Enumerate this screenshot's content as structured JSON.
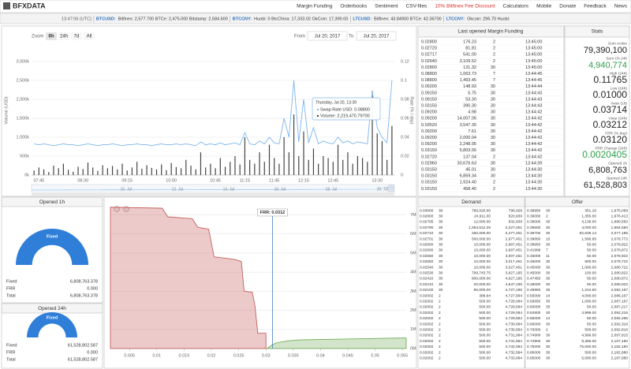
{
  "header": {
    "logo": "BFXDATA",
    "menu": [
      "Margin Funding",
      "Orderbooks",
      "Sentiment",
      "CSV-files",
      "10% Bitfinex Fee Discount",
      "Calculators",
      "Mobile",
      "Donate",
      "Feedback",
      "News"
    ]
  },
  "ticker": {
    "time": "13:47:06 (UTC)",
    "pairs": [
      {
        "pair": "BTCUSD:",
        "quotes": "Bitfinex: 2,577.700 BTCe: 2,475.000 Bitstamp: 2,584.600"
      },
      {
        "pair": "BTCCNY:",
        "quotes": "Huobi: 0 BtcChina: 17,333.02 OkCoin: 17,390.00"
      },
      {
        "pair": "LTCUSD:",
        "quotes": "Bitfinex: 43.84900 BTCe: 42.36700"
      },
      {
        "pair": "LTCCNY:",
        "quotes": "Okcoin: 296.70 Huobi:"
      }
    ]
  },
  "controls": {
    "zoom": "Zoom",
    "buttons": [
      "6h",
      "24h",
      "7d",
      "All"
    ],
    "from": "From",
    "from_date": "Jul 20, 2017",
    "to": "To",
    "to_date": "Jul 20, 2017"
  },
  "chart_data": [
    {
      "type": "bar",
      "ylabel": "Volume (USD)",
      "y2label": "Rate (% / day)",
      "categories": [
        null,
        "07:45",
        null,
        null,
        null,
        null,
        null,
        null,
        null,
        null,
        "08:30",
        null,
        null,
        null,
        null,
        null,
        null,
        null,
        null,
        "09:15",
        null,
        null,
        null,
        null,
        null,
        null,
        null,
        null,
        "10:00",
        null,
        null,
        null,
        null,
        null,
        null,
        null,
        null,
        "10:45",
        null,
        null,
        null,
        null,
        null,
        "11:15",
        null,
        null,
        null,
        null,
        null,
        "11:45",
        null,
        null,
        null,
        null,
        null,
        "12:15",
        null,
        null,
        null,
        null,
        null,
        "12:45",
        null,
        null,
        null,
        null,
        null,
        null,
        null,
        null,
        "13:30",
        null,
        null,
        null
      ],
      "series": [
        {
          "name": "Volume",
          "color": "#444444",
          "values": [
            120,
            200,
            150,
            80,
            250,
            180,
            300,
            140,
            90,
            220,
            160,
            330,
            200,
            110,
            260,
            180,
            240,
            150,
            300,
            120,
            200,
            350,
            170,
            260,
            190,
            150,
            280,
            130,
            320,
            210,
            180,
            400,
            250,
            150,
            600,
            200,
            300,
            180,
            450,
            220,
            350,
            500,
            280,
            1000,
            400,
            300,
            600,
            350,
            800,
            450,
            300,
            1000,
            600,
            1600,
            500,
            1150,
            400,
            700,
            300,
            500,
            450,
            350,
            800,
            400,
            600,
            300,
            500,
            450,
            350,
            2219,
            1100,
            900,
            400,
            1300
          ]
        },
        {
          "name": "Swap Rate USD",
          "color": "#7cb5ec",
          "axis": "y2",
          "values": [
            0.033,
            0.032,
            0.033,
            0.032,
            0.031,
            0.032,
            0.033,
            0.032,
            0.032,
            0.031,
            0.032,
            0.033,
            0.032,
            0.031,
            0.032,
            0.032,
            0.033,
            0.032,
            0.031,
            0.032,
            0.032,
            0.033,
            0.032,
            0.032,
            0.031,
            0.032,
            0.033,
            0.032,
            0.032,
            0.033,
            0.032,
            0.033,
            0.032,
            0.031,
            0.035,
            0.032,
            0.033,
            0.032,
            0.034,
            0.032,
            0.033,
            0.034,
            0.032,
            0.045,
            0.033,
            0.032,
            0.036,
            0.033,
            0.04,
            0.034,
            0.033,
            0.06,
            0.04,
            0.1,
            0.035,
            0.08,
            0.034,
            0.05,
            0.033,
            0.036,
            0.034,
            0.033,
            0.04,
            0.034,
            0.036,
            0.033,
            0.035,
            0.034,
            0.033,
            0.088,
            0.05,
            0.04,
            0.034,
            0.1
          ]
        }
      ],
      "ylim": [
        0,
        3375
      ],
      "yticks": [
        {
          "value": 0,
          "label": "0k"
        },
        {
          "value": 500,
          "label": "500k"
        },
        {
          "value": 1000,
          "label": "1,000k"
        },
        {
          "value": 1500,
          "label": "1,500k"
        },
        {
          "value": 2000,
          "label": "2,000k"
        },
        {
          "value": 2500,
          "label": "2,500k"
        },
        {
          "value": 3000,
          "label": "3,000k"
        }
      ],
      "y2lim": [
        0,
        0.135
      ],
      "y2ticks": [
        0,
        0.02,
        0.04,
        0.06,
        0.08,
        0.1,
        0.12
      ],
      "grid": true,
      "tooltip": {
        "date": "Thursday, Jul 20, 13:39",
        "rate": "Swap Rate USD: 0.08800",
        "volume": "Volume: 2,219,470.79700"
      },
      "navigator_labels": [
        "10. Jul",
        "12. Jul",
        "14. Jul",
        "16. Jul",
        "18. Jul",
        "20. Jul"
      ]
    },
    {
      "type": "area",
      "frr": {
        "value": 0.0312,
        "label": "FRR: 0.0312"
      },
      "series": [
        {
          "name": "Demand",
          "color": "#c0504d",
          "x": [
            0.0015,
            0.011,
            0.012,
            0.0165,
            0.0175,
            0.0195,
            0.0205,
            0.0235,
            0.0245,
            0.0255,
            0.026,
            0.0275,
            0.028,
            0.0285,
            0.0295,
            0.03,
            0.03
          ],
          "values": [
            7.4,
            7.35,
            6.9,
            6.8,
            6.35,
            6.25,
            4.8,
            4.7,
            4.65,
            4.55,
            3.0,
            2.95,
            2.2,
            0.8,
            0.8,
            0.8,
            0
          ]
        },
        {
          "name": "Offer",
          "color": "#6aa84f",
          "x": [
            0.0302,
            0.0312,
            0.032,
            0.034,
            0.036,
            0.045,
            0.055,
            0.0557
          ],
          "values": [
            0,
            0.2,
            0.3,
            0.4,
            0.45,
            0.5,
            0.55,
            0.55
          ]
        }
      ],
      "xlim": [
        0.0015,
        0.0557
      ],
      "xticks": [
        0.005,
        0.01,
        0.015,
        0.02,
        0.025,
        0.03,
        0.035,
        0.04,
        0.045,
        0.05,
        0.055
      ],
      "ylim": [
        0,
        7.6
      ],
      "yticks": [
        {
          "value": 0,
          "label": "0M"
        },
        {
          "value": 1,
          "label": "1M"
        },
        {
          "value": 2,
          "label": "2M"
        },
        {
          "value": 3,
          "label": "3M"
        },
        {
          "value": 4,
          "label": "4M"
        },
        {
          "value": 5,
          "label": "5M"
        },
        {
          "value": 6,
          "label": "6M"
        },
        {
          "value": 7,
          "label": "7M"
        }
      ],
      "grid": true
    }
  ],
  "funding": {
    "title": "Last opened Margin Funding",
    "rows": [
      [
        "0.02800",
        "176.23",
        "2",
        "13:45:00"
      ],
      [
        "0.02720",
        "81.81",
        "2",
        "13:45:00"
      ],
      [
        "0.02717",
        "541.00",
        "2",
        "13:45:00"
      ],
      [
        "0.02640",
        "3,109.52",
        "2",
        "13:45:00"
      ],
      [
        "0.02800",
        "131.32",
        "30",
        "13:45:00"
      ],
      [
        "0.08800",
        "1,063.73",
        "7",
        "13:44:45"
      ],
      [
        "0.08800",
        "1,493.45",
        "7",
        "13:44:45"
      ],
      [
        "0.09200",
        "148.93",
        "30",
        "13:44:44"
      ],
      [
        "0.09150",
        "5.75",
        "30",
        "13:44:43"
      ],
      [
        "0.09150",
        "53.30",
        "30",
        "13:44:43"
      ],
      [
        "0.03150",
        "390.30",
        "30",
        "13:44:43"
      ],
      [
        "0.09200",
        "4.98",
        "30",
        "13:44:42"
      ],
      [
        "0.09200",
        "14,007.06",
        "30",
        "13:44:42"
      ],
      [
        "0.03520",
        "3,547.30",
        "30",
        "13:44:42"
      ],
      [
        "0.09200",
        "7.61",
        "30",
        "13:44:42"
      ],
      [
        "0.09200",
        "2,000.04",
        "30",
        "13:44:42"
      ],
      [
        "0.09200",
        "2,248.95",
        "30",
        "13:44:42"
      ],
      [
        "0.03150",
        "5,803.56",
        "30",
        "13:44:42"
      ],
      [
        "0.02720",
        "137.04",
        "2",
        "13:44:42"
      ],
      [
        "0.02960",
        "30,676.63",
        "30",
        "13:44:39"
      ],
      [
        "0.03150",
        "45.01",
        "30",
        "13:44:30"
      ],
      [
        "0.03150",
        "6,859.34",
        "30",
        "13:44:30"
      ],
      [
        "0.03150",
        "1,924.40",
        "2",
        "13:44:30"
      ],
      [
        "0.03150",
        "458.40",
        "2",
        "13:44:30"
      ]
    ]
  },
  "stats": {
    "title": "Stats",
    "items": [
      {
        "label": "Sum Active",
        "value": "79,390,100"
      },
      {
        "label": "Sum Ch 24h",
        "value": "4,940,774",
        "color": "#2e9e4a"
      },
      {
        "label": "High (24h)",
        "value": "0.11765"
      },
      {
        "label": "Low (24h)",
        "value": "0.01000"
      },
      {
        "label": "Vwar (1h)",
        "value": "0.03714"
      },
      {
        "label": "Vwar (24h)",
        "value": "0.03212"
      },
      {
        "label": "FRR (% day)",
        "value": "0.03120"
      },
      {
        "label": "FRR Change (24h)",
        "value": "0.0020405",
        "color": "#2e9e4a"
      },
      {
        "label": "Opened 1h",
        "value": "6,808,763"
      },
      {
        "label": "Opened 24h",
        "value": "61,528,803"
      }
    ]
  },
  "opened": [
    {
      "title": "Opened 1h",
      "gauge_label": "Fixed",
      "rows": [
        [
          "Fixed",
          "6,808,763.378"
        ],
        [
          "FRR",
          "0.000"
        ],
        [
          "Total",
          "6,808,763.378"
        ]
      ]
    },
    {
      "title": "Opened 24h",
      "gauge_label": "Fixed",
      "rows": [
        [
          "Fixed",
          "61,528,802.587"
        ],
        [
          "FRR",
          "0.000"
        ],
        [
          "Total",
          "61,528,802.587"
        ]
      ]
    }
  ],
  "demand": {
    "title": "Demand",
    "rows": [
      [
        "0.03000",
        "30",
        "796,020.00",
        "796,028"
      ],
      [
        "0.02800",
        "30",
        "24,911.00",
        "820,939"
      ],
      [
        "0.02795",
        "30",
        "12,000.00",
        "832,939"
      ],
      [
        "0.02790",
        "30",
        "1,394,512.25",
        "2,227,451"
      ],
      [
        "0.02710",
        "30",
        "250,000.00",
        "2,477,451"
      ],
      [
        "0.02701",
        "30",
        "500,000.00",
        "2,977,451"
      ],
      [
        "0.02600",
        "30",
        "10,000.00",
        "2,987,451"
      ],
      [
        "0.02600",
        "30",
        "10,000.00",
        "2,997,451"
      ],
      [
        "0.02550",
        "30",
        "10,000.00",
        "3,007,451"
      ],
      [
        "0.02550",
        "30",
        "10,000.00",
        "3,017,451"
      ],
      [
        "0.02540",
        "30",
        "10,000.00",
        "3,027,451"
      ],
      [
        "0.02530",
        "30",
        "799,743.75",
        "3,827,195"
      ],
      [
        "0.02410",
        "30",
        "800,000.00",
        "4,627,195"
      ],
      [
        "0.02210",
        "30",
        "20,000.00",
        "4,647,195"
      ],
      [
        "0.02100",
        "30",
        "80,000.00",
        "4,727,195"
      ],
      [
        "0.02002",
        "2",
        "388.94",
        "4,727,584"
      ],
      [
        "0.02002",
        "2",
        "500.00",
        "4,728,084"
      ],
      [
        "0.02002",
        "2",
        "500.00",
        "4,728,584"
      ],
      [
        "0.02002",
        "2",
        "500.00",
        "4,729,084"
      ],
      [
        "0.02002",
        "2",
        "500.00",
        "4,729,584"
      ],
      [
        "0.02002",
        "2",
        "500.00",
        "4,730,084"
      ],
      [
        "0.02002",
        "2",
        "500.00",
        "4,730,584"
      ],
      [
        "0.02002",
        "2",
        "500.00",
        "4,731,084"
      ],
      [
        "0.02002",
        "2",
        "500.00",
        "4,731,584"
      ],
      [
        "0.02002",
        "2",
        "500.00",
        "4,732,084"
      ],
      [
        "0.02002",
        "2",
        "500.00",
        "4,732,584"
      ],
      [
        "0.02002",
        "2",
        "500.00",
        "4,733,084"
      ]
    ]
  },
  "offer": {
    "title": "Offer",
    "rows": [
      [
        "0.38950",
        "30",
        "351.16",
        "1,975,058"
      ],
      [
        "0.39000",
        "2",
        "1,355.00",
        "1,976,413"
      ],
      [
        "0.39000",
        "30",
        "4,136.00",
        "1,980,550"
      ],
      [
        "0.39600",
        "30",
        "4,000.00",
        "1,984,550"
      ],
      [
        "0.39700",
        "30",
        "92,635.14",
        "2,077,185"
      ],
      [
        "0.39850",
        "15",
        "1,586.95",
        "2,078,772"
      ],
      [
        "0.39950",
        "30",
        "50.00",
        "2,078,822"
      ],
      [
        "0.41996",
        "7",
        "50.00",
        "2,078,872"
      ],
      [
        "0.45000",
        "11",
        "50.00",
        "2,078,922"
      ],
      [
        "0.45000",
        "30",
        "800.00",
        "2,079,722"
      ],
      [
        "0.45000",
        "30",
        "1,000.00",
        "2,080,722"
      ],
      [
        "0.45000",
        "30",
        "100.00",
        "2,080,822"
      ],
      [
        "0.47450",
        "30",
        "50.00",
        "2,080,872"
      ],
      [
        "0.48000",
        "30",
        "50.00",
        "2,080,922"
      ],
      [
        "0.49950",
        "30",
        "1,244.60",
        "2,082,167"
      ],
      [
        "0.55000",
        "14",
        "4,000.00",
        "2,086,167"
      ],
      [
        "0.59950",
        "30",
        "1,000.00",
        "2,087,167"
      ],
      [
        "0.60000",
        "30",
        "50.00",
        "2,087,217"
      ],
      [
        "0.64900",
        "30",
        "4,999.00",
        "2,092,216"
      ],
      [
        "0.65000",
        "14",
        "50.00",
        "2,092,266"
      ],
      [
        "0.69000",
        "30",
        "50.00",
        "2,092,316"
      ],
      [
        "0.70000",
        "2",
        "500.00",
        "2,092,816"
      ],
      [
        "0.74900",
        "30",
        "4,999.00",
        "2,097,815"
      ],
      [
        "0.74900",
        "30",
        "9,365.00",
        "2,107,180"
      ],
      [
        "0.75000",
        "30",
        "75,000.00",
        "2,182,180"
      ],
      [
        "0.80000",
        "30",
        "500.00",
        "2,182,680"
      ],
      [
        "0.85000",
        "30",
        "5,000.00",
        "2,187,680"
      ]
    ]
  }
}
